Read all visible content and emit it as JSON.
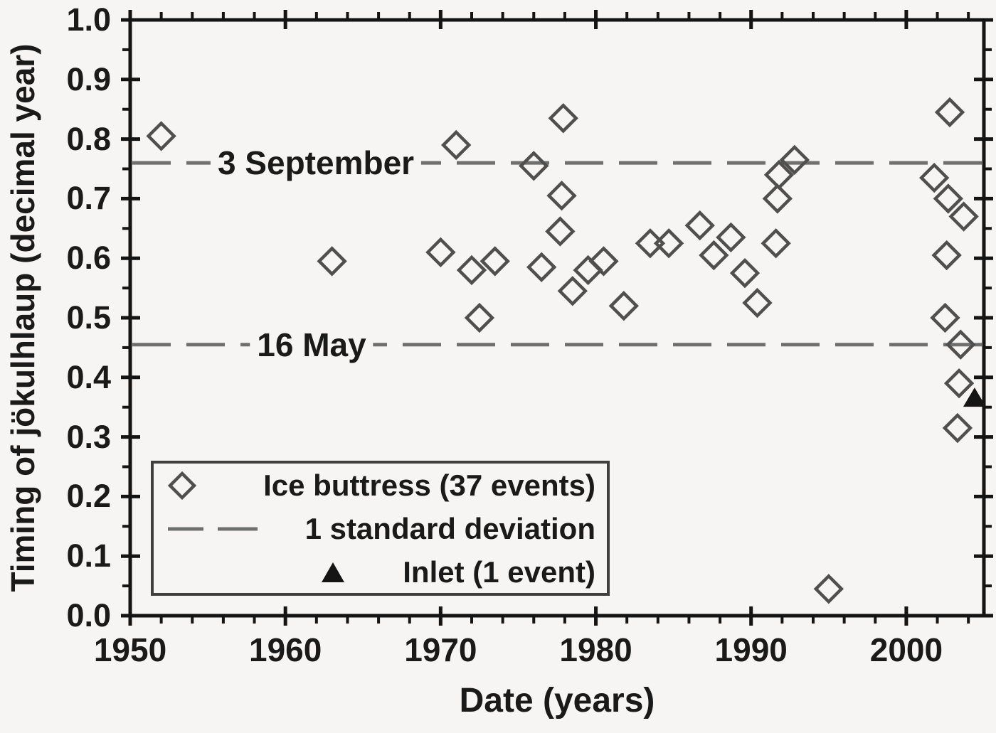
{
  "figure": {
    "x_axis": {
      "title": "Date (years)",
      "tick_labels": [
        "1950",
        "1960",
        "1970",
        "1980",
        "1990",
        "2000"
      ],
      "tick_values": [
        1950,
        1960,
        1970,
        1980,
        1990,
        2000
      ],
      "minor_tick_step_years": 2,
      "min": 1950,
      "max": 2005
    },
    "y_axis": {
      "title": "Timing of jökulhlaup (decimal year)",
      "tick_labels": [
        "1.0",
        "0.9",
        "0.8",
        "0.7",
        "0.6",
        "0.5",
        "0.4",
        "0.3",
        "0.2",
        "0.1",
        "0.0"
      ],
      "tick_values": [
        1.0,
        0.9,
        0.8,
        0.7,
        0.6,
        0.5,
        0.4,
        0.3,
        0.2,
        0.1,
        0.0
      ],
      "minor_tick_step": 0.05,
      "min": 0.0,
      "max": 1.0
    },
    "annotations": [
      {
        "text": "3 September",
        "value": 0.76
      },
      {
        "text": "16 May",
        "value": 0.455
      }
    ],
    "legend": {
      "items": [
        {
          "marker": "open-diamond",
          "label": "Ice buttress (37 events)"
        },
        {
          "marker": "dashed-line",
          "label": "1 standard deviation"
        },
        {
          "marker": "filled-triangle",
          "label": "Inlet (1 event)"
        }
      ]
    },
    "colors": {
      "frame": "#141414",
      "text": "#1a1a1a",
      "diamond_stroke": "#4f4f4f",
      "dash_line": "#6f6f6f",
      "triangle_fill": "#151515",
      "background": "#f6f5f3"
    }
  },
  "chart_data": {
    "type": "scatter",
    "title": "",
    "xlabel": "Date (years)",
    "ylabel": "Timing of jökulhlaup (decimal year)",
    "xlim": [
      1950,
      2005
    ],
    "ylim": [
      0.0,
      1.0
    ],
    "grid": false,
    "legend_position": "lower-left",
    "series": [
      {
        "name": "Ice buttress (37 events)",
        "marker": "open-diamond",
        "points": [
          [
            1952,
            0.805
          ],
          [
            1963,
            0.595
          ],
          [
            1970,
            0.61
          ],
          [
            1971,
            0.79
          ],
          [
            1972,
            0.58
          ],
          [
            1972.5,
            0.5
          ],
          [
            1973.5,
            0.595
          ],
          [
            1976,
            0.755
          ],
          [
            1976.5,
            0.585
          ],
          [
            1977.7,
            0.645
          ],
          [
            1977.9,
            0.835
          ],
          [
            1977.8,
            0.705
          ],
          [
            1978.5,
            0.545
          ],
          [
            1979.5,
            0.58
          ],
          [
            1980.5,
            0.595
          ],
          [
            1981.8,
            0.52
          ],
          [
            1983.5,
            0.625
          ],
          [
            1984.7,
            0.625
          ],
          [
            1986.7,
            0.655
          ],
          [
            1987.6,
            0.605
          ],
          [
            1988.7,
            0.635
          ],
          [
            1989.6,
            0.575
          ],
          [
            1990.4,
            0.525
          ],
          [
            1991.6,
            0.625
          ],
          [
            1991.7,
            0.7
          ],
          [
            1991.8,
            0.74
          ],
          [
            1992.8,
            0.765
          ],
          [
            1995,
            0.045
          ],
          [
            2001.8,
            0.735
          ],
          [
            2002.8,
            0.845
          ],
          [
            2002.7,
            0.7
          ],
          [
            2002.6,
            0.605
          ],
          [
            2002.5,
            0.5
          ],
          [
            2003.3,
            0.315
          ],
          [
            2003.4,
            0.39
          ],
          [
            2003.5,
            0.455
          ],
          [
            2003.7,
            0.67
          ]
        ]
      },
      {
        "name": "Inlet (1 event)",
        "marker": "filled-triangle",
        "points": [
          [
            2004.4,
            0.365
          ]
        ]
      }
    ],
    "reference_lines": [
      {
        "label": "3 September",
        "y": 0.76,
        "style": "dashed",
        "meaning": "mean + 1 standard deviation"
      },
      {
        "label": "16 May",
        "y": 0.455,
        "style": "dashed",
        "meaning": "mean - 1 standard deviation"
      }
    ]
  }
}
